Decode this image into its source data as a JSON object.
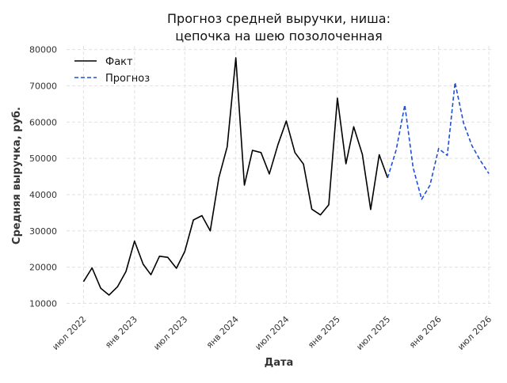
{
  "chart_data": {
    "type": "line",
    "title": [
      "Прогноз средней выручки, ниша:",
      "цепочка на шею позолоченная"
    ],
    "xlabel": "Дата",
    "ylabel": "Средняя выручка, руб.",
    "ylim": [
      9000,
      81000
    ],
    "xlim": [
      "2022-05-01",
      "2026-07-15"
    ],
    "x_ticks": [
      {
        "date": "2022-07-01",
        "label": "июл 2022"
      },
      {
        "date": "2023-01-01",
        "label": "янв 2023"
      },
      {
        "date": "2023-07-01",
        "label": "июл 2023"
      },
      {
        "date": "2024-01-01",
        "label": "янв 2024"
      },
      {
        "date": "2024-07-01",
        "label": "июл 2024"
      },
      {
        "date": "2025-01-01",
        "label": "янв 2025"
      },
      {
        "date": "2025-07-01",
        "label": "июл 2025"
      },
      {
        "date": "2026-01-01",
        "label": "янв 2026"
      },
      {
        "date": "2026-07-01",
        "label": "июл 2026"
      }
    ],
    "y_ticks": [
      10000,
      20000,
      30000,
      40000,
      50000,
      60000,
      70000,
      80000
    ],
    "grid": true,
    "legend_position": "top-left",
    "series": [
      {
        "name": "Факт",
        "color": "#000000",
        "style": "solid",
        "points": [
          [
            "2022-07-01",
            16000
          ],
          [
            "2022-08-01",
            19800
          ],
          [
            "2022-09-01",
            14200
          ],
          [
            "2022-10-01",
            12300
          ],
          [
            "2022-11-01",
            14600
          ],
          [
            "2022-12-01",
            18800
          ],
          [
            "2023-01-01",
            27200
          ],
          [
            "2023-02-01",
            20800
          ],
          [
            "2023-03-01",
            17900
          ],
          [
            "2023-04-01",
            23000
          ],
          [
            "2023-05-01",
            22700
          ],
          [
            "2023-06-01",
            19700
          ],
          [
            "2023-07-01",
            24300
          ],
          [
            "2023-08-01",
            33000
          ],
          [
            "2023-09-01",
            34200
          ],
          [
            "2023-10-01",
            30000
          ],
          [
            "2023-11-01",
            44700
          ],
          [
            "2023-12-01",
            53200
          ],
          [
            "2024-01-01",
            77700
          ],
          [
            "2024-02-01",
            42600
          ],
          [
            "2024-03-01",
            52200
          ],
          [
            "2024-04-01",
            51600
          ],
          [
            "2024-05-01",
            45700
          ],
          [
            "2024-06-01",
            53800
          ],
          [
            "2024-07-01",
            60300
          ],
          [
            "2024-08-01",
            51600
          ],
          [
            "2024-09-01",
            48400
          ],
          [
            "2024-10-01",
            36000
          ],
          [
            "2024-11-01",
            34400
          ],
          [
            "2024-12-01",
            37200
          ],
          [
            "2025-01-01",
            66600
          ],
          [
            "2025-02-01",
            48500
          ],
          [
            "2025-03-01",
            58700
          ],
          [
            "2025-04-01",
            51100
          ],
          [
            "2025-05-01",
            35900
          ],
          [
            "2025-06-01",
            51000
          ],
          [
            "2025-07-01",
            44600
          ]
        ]
      },
      {
        "name": "Прогноз",
        "color": "#1f4fd6",
        "style": "dashed",
        "points": [
          [
            "2025-07-01",
            44600
          ],
          [
            "2025-08-01",
            52300
          ],
          [
            "2025-09-01",
            64700
          ],
          [
            "2025-10-01",
            47400
          ],
          [
            "2025-11-01",
            38700
          ],
          [
            "2025-12-01",
            42600
          ],
          [
            "2026-01-01",
            52700
          ],
          [
            "2026-02-01",
            50800
          ],
          [
            "2026-03-01",
            70900
          ],
          [
            "2026-04-01",
            59700
          ],
          [
            "2026-05-01",
            53500
          ],
          [
            "2026-06-01",
            49300
          ],
          [
            "2026-07-01",
            45800
          ]
        ]
      }
    ]
  }
}
